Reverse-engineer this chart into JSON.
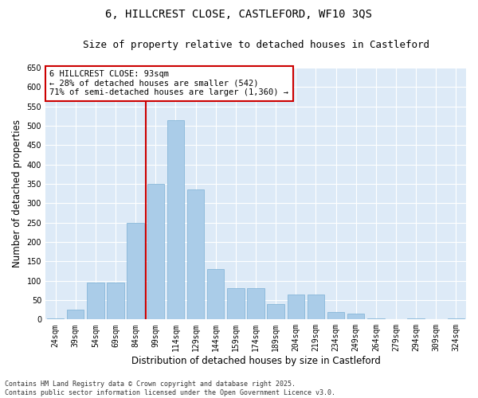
{
  "title_line1": "6, HILLCREST CLOSE, CASTLEFORD, WF10 3QS",
  "title_line2": "Size of property relative to detached houses in Castleford",
  "xlabel": "Distribution of detached houses by size in Castleford",
  "ylabel": "Number of detached properties",
  "categories": [
    "24sqm",
    "39sqm",
    "54sqm",
    "69sqm",
    "84sqm",
    "99sqm",
    "114sqm",
    "129sqm",
    "144sqm",
    "159sqm",
    "174sqm",
    "189sqm",
    "204sqm",
    "219sqm",
    "234sqm",
    "249sqm",
    "264sqm",
    "279sqm",
    "294sqm",
    "309sqm",
    "324sqm"
  ],
  "values": [
    2,
    25,
    95,
    95,
    250,
    350,
    515,
    335,
    130,
    80,
    80,
    40,
    65,
    65,
    20,
    15,
    2,
    0,
    2,
    0,
    2
  ],
  "bar_color": "#aacce8",
  "bar_edge_color": "#7aafd4",
  "vline_color": "#cc0000",
  "annotation_text": "6 HILLCREST CLOSE: 93sqm\n← 28% of detached houses are smaller (542)\n71% of semi-detached houses are larger (1,360) →",
  "annotation_box_color": "#cc0000",
  "ylim": [
    0,
    650
  ],
  "yticks": [
    0,
    50,
    100,
    150,
    200,
    250,
    300,
    350,
    400,
    450,
    500,
    550,
    600,
    650
  ],
  "background_color": "#ddeaf7",
  "footer_text": "Contains HM Land Registry data © Crown copyright and database right 2025.\nContains public sector information licensed under the Open Government Licence v3.0.",
  "title_fontsize": 10,
  "subtitle_fontsize": 9,
  "axis_label_fontsize": 8.5,
  "tick_fontsize": 7,
  "annotation_fontsize": 7.5,
  "footer_fontsize": 6
}
